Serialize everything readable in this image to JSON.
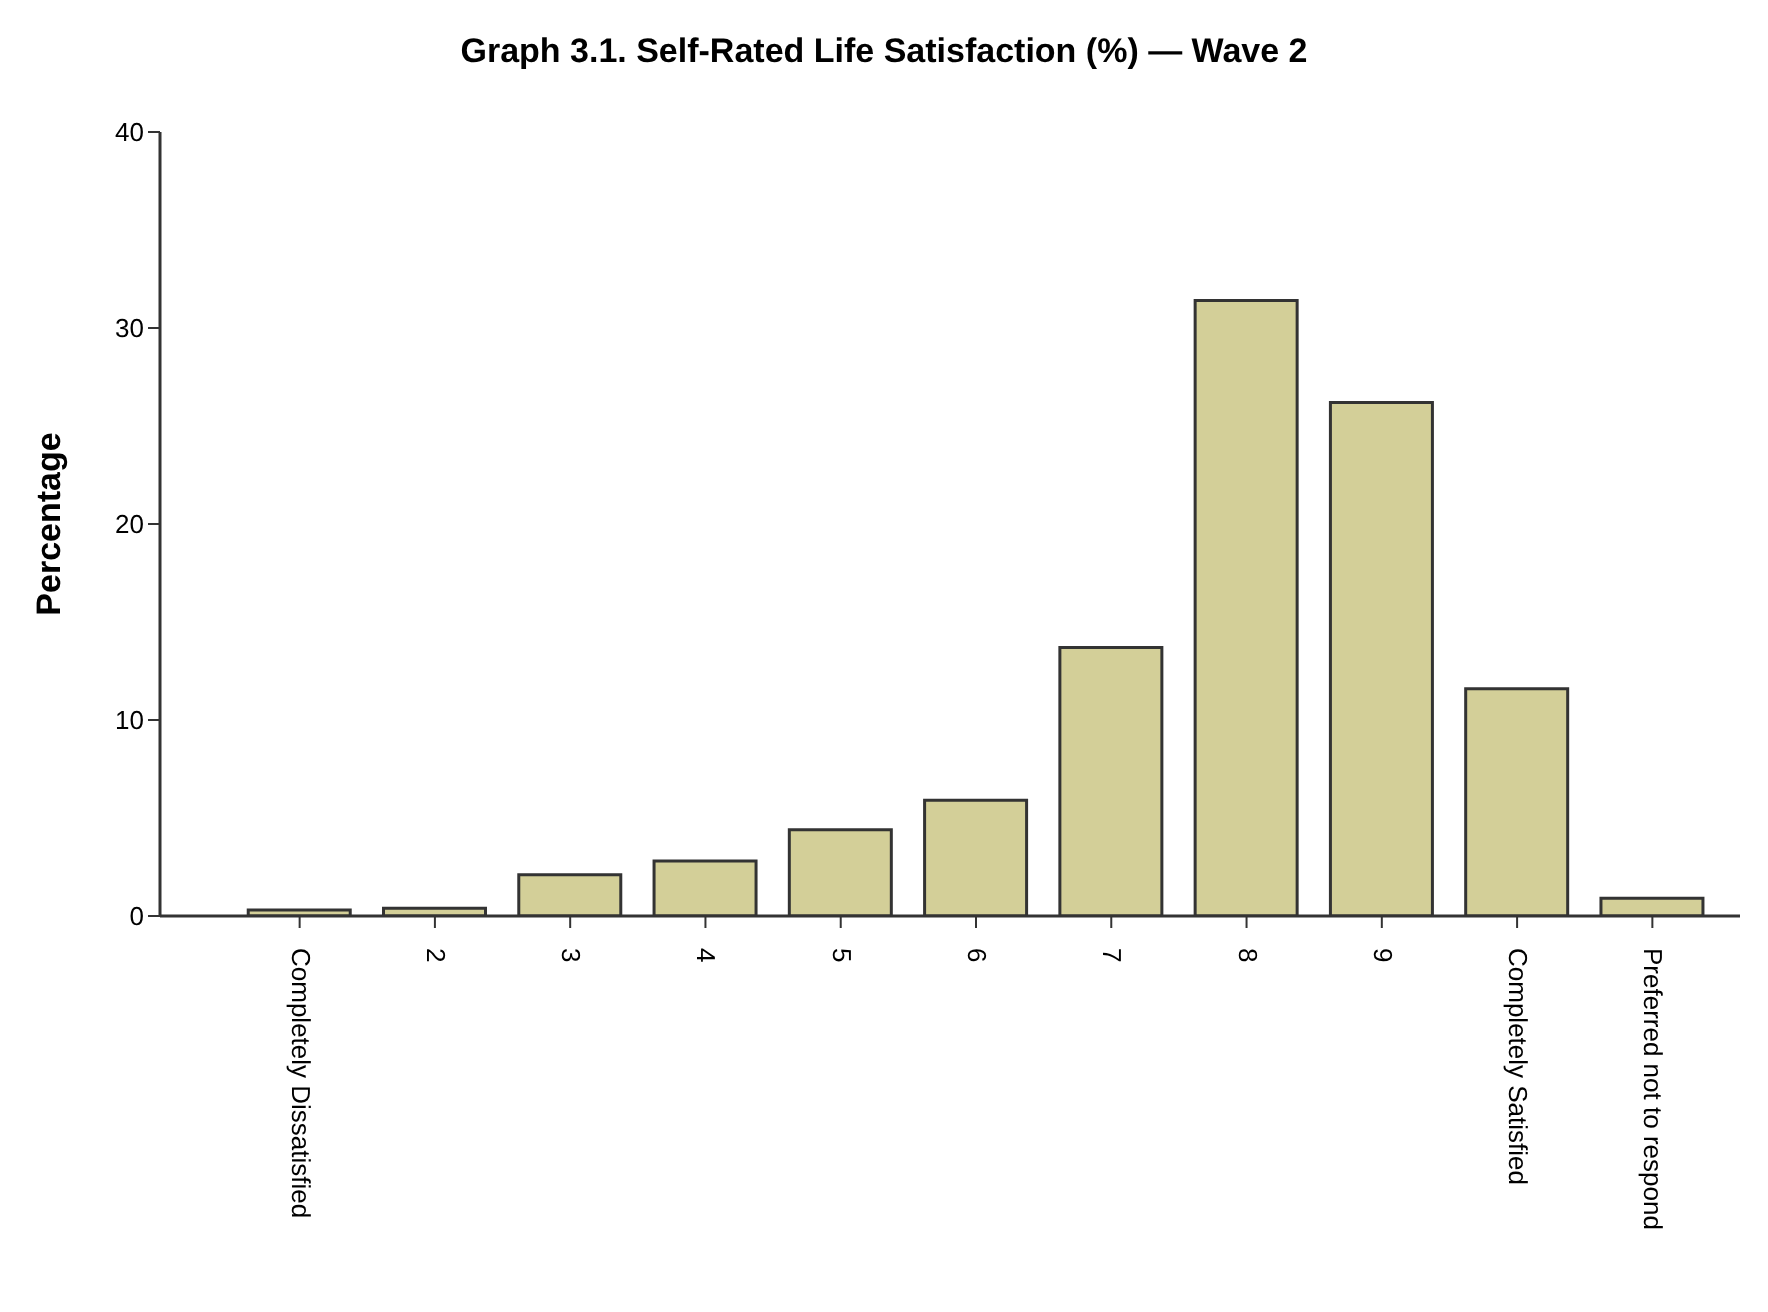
{
  "chart_data": {
    "type": "bar",
    "title": "Graph 3.1. Self-Rated Life Satisfaction (%) — Wave 2",
    "ylabel": "Percentage",
    "categories": [
      "Completely Dissatisfied",
      "2",
      "3",
      "4",
      "5",
      "6",
      "7",
      "8",
      "9",
      "Completely Satisfied",
      "Preferred not to respond"
    ],
    "values": [
      0.3,
      0.4,
      2.1,
      2.8,
      4.4,
      5.9,
      13.7,
      31.4,
      26.2,
      11.6,
      0.9
    ],
    "color": "#d3cf98",
    "ylim": [
      0,
      40
    ],
    "yticks": [
      0,
      10,
      20,
      30,
      40
    ],
    "grid": false,
    "legend": false
  }
}
